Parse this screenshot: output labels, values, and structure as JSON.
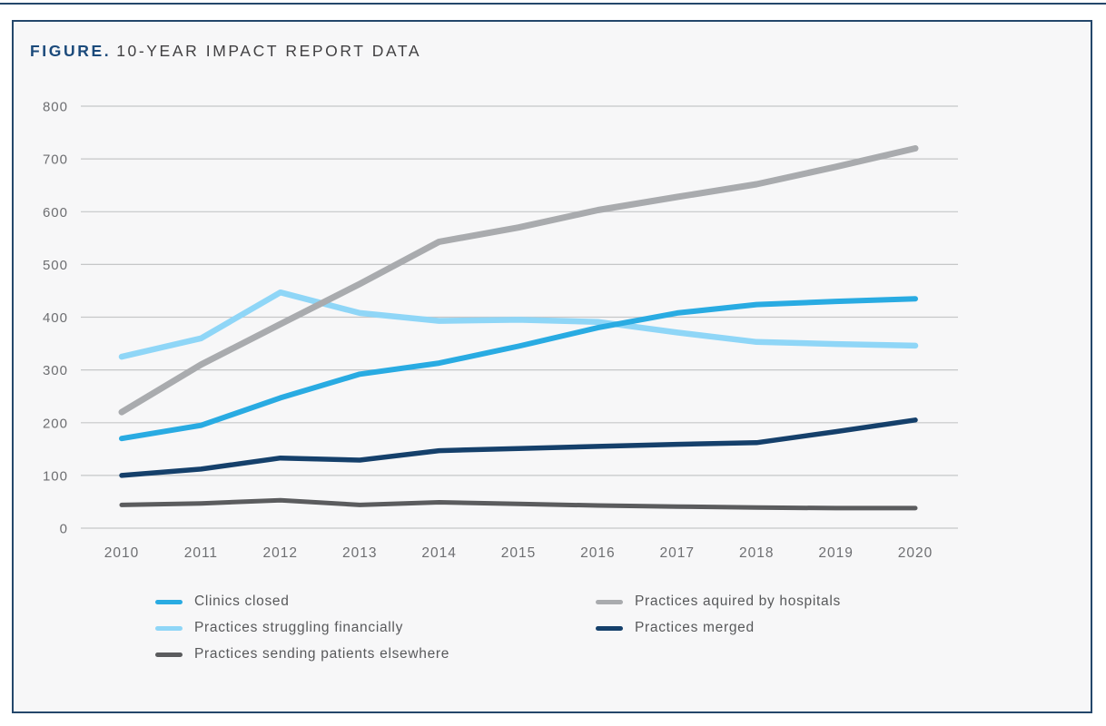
{
  "title": {
    "prefix": "FIGURE.",
    "text": "10-YEAR IMPACT REPORT DATA"
  },
  "colors": {
    "accent_navy": "#24476b",
    "card_background": "#f7f7f8",
    "gridline": "#c6c7c8",
    "axis_label": "#6d6e71",
    "legend_text": "#58595b",
    "title_prefix": "#1b4a7b",
    "title_text": "#414042"
  },
  "chart_data": {
    "type": "line",
    "title": "FIGURE. 10-YEAR IMPACT REPORT DATA",
    "x": [
      "2010",
      "2011",
      "2012",
      "2013",
      "2014",
      "2015",
      "2016",
      "2017",
      "2018",
      "2019",
      "2020"
    ],
    "series": [
      {
        "name": "Clinics closed",
        "color": "#29abe2",
        "values": [
          170,
          195,
          247,
          292,
          313,
          345,
          380,
          408,
          424,
          430,
          435
        ]
      },
      {
        "name": "Practices struggling financially",
        "color": "#8fd6f7",
        "values": [
          325,
          360,
          447,
          408,
          393,
          395,
          391,
          371,
          353,
          349,
          346
        ]
      },
      {
        "name": "Practices sending patients elsewhere",
        "color": "#5b5c5e",
        "values": [
          44,
          47,
          53,
          44,
          49,
          46,
          43,
          41,
          39,
          38,
          38
        ]
      },
      {
        "name": "Practices aquired by hospitals",
        "color": "#a9abae",
        "values": [
          220,
          310,
          387,
          463,
          543,
          570,
          603,
          628,
          652,
          685,
          720
        ]
      },
      {
        "name": "Practices merged",
        "color": "#15406b",
        "values": [
          100,
          112,
          133,
          129,
          147,
          151,
          155,
          159,
          162,
          183,
          205
        ]
      }
    ],
    "xlabel": "",
    "ylabel": "",
    "ylim": [
      0,
      800
    ],
    "ytick_step": 100,
    "grid": "horizontal",
    "legend_position": "bottom",
    "legend_columns": [
      [
        0,
        1,
        2
      ],
      [
        3,
        4
      ]
    ]
  }
}
